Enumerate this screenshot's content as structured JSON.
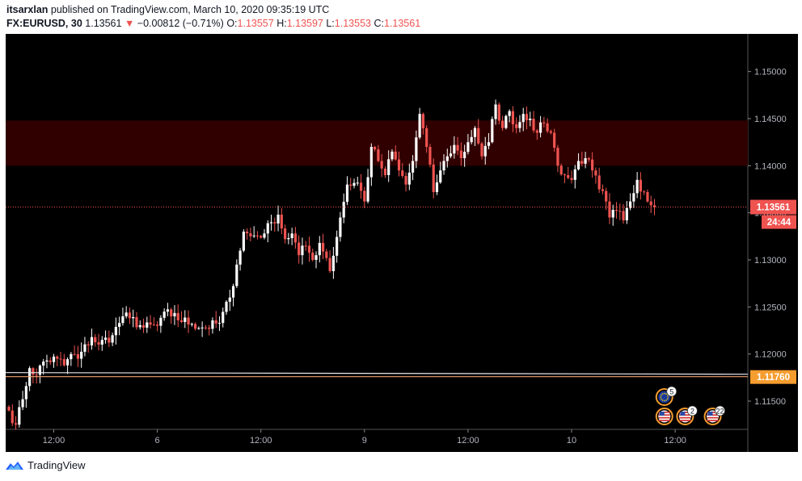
{
  "header": {
    "author": "itsarxlan",
    "published": "published on TradingView.com, March 10, 2020 09:35:19 UTC",
    "symbol": "FX:EURUSD, 30",
    "last": "1.13561",
    "change": "−0.00812 (−0.71%)",
    "o_label": "O:",
    "o": "1.13557",
    "h_label": "H:",
    "h": "1.13597",
    "l_label": "L:",
    "l": "1.13553",
    "c_label": "C:",
    "c": "1.13561"
  },
  "footer": {
    "brand": "TradingView"
  },
  "colors": {
    "bull": "#ffffff",
    "bear": "#ef5350",
    "background": "#000000",
    "zone": "#300000"
  },
  "chart_data": {
    "type": "candlestick",
    "y_ticks": [
      "1.11500",
      "1.12000",
      "1.12500",
      "1.13000",
      "1.13500",
      "1.14000",
      "1.14500",
      "1.15000"
    ],
    "ylim": [
      1.112,
      1.154
    ],
    "x_ticks": [
      {
        "label": "12:00",
        "bar": 13
      },
      {
        "label": "6",
        "bar": 43
      },
      {
        "label": "12:00",
        "bar": 73
      },
      {
        "label": "9",
        "bar": 103
      },
      {
        "label": "12:00",
        "bar": 133
      },
      {
        "label": "10",
        "bar": 163
      },
      {
        "label": "12:00",
        "bar": 193
      }
    ],
    "bar_count": 210,
    "resistance_zone": [
      1.14,
      1.1448
    ],
    "current_price": {
      "value": 1.13561,
      "label": "1.13561",
      "countdown": "24:44"
    },
    "level": {
      "value": 1.1176,
      "label": "1.11760"
    },
    "events": [
      {
        "flag": "eu",
        "count": "5",
        "bar": 188
      },
      {
        "flag": "us",
        "count": "",
        "bar": 188
      },
      {
        "flag": "us",
        "count": "2",
        "bar": 194
      },
      {
        "flag": "us",
        "count": "22",
        "bar": 202
      }
    ],
    "waypoints": [
      [
        0,
        1.114
      ],
      [
        2,
        1.1125
      ],
      [
        4,
        1.1152
      ],
      [
        6,
        1.1185
      ],
      [
        8,
        1.1178
      ],
      [
        10,
        1.1192
      ],
      [
        14,
        1.1195
      ],
      [
        16,
        1.1188
      ],
      [
        18,
        1.12
      ],
      [
        20,
        1.1195
      ],
      [
        24,
        1.1218
      ],
      [
        26,
        1.121
      ],
      [
        30,
        1.122
      ],
      [
        33,
        1.124
      ],
      [
        35,
        1.1238
      ],
      [
        39,
        1.1228
      ],
      [
        43,
        1.123
      ],
      [
        45,
        1.1245
      ],
      [
        47,
        1.124
      ],
      [
        53,
        1.1232
      ],
      [
        57,
        1.1228
      ],
      [
        61,
        1.1233
      ],
      [
        64,
        1.126
      ],
      [
        66,
        1.1295
      ],
      [
        68,
        1.133
      ],
      [
        70,
        1.1325
      ],
      [
        74,
        1.1328
      ],
      [
        76,
        1.134
      ],
      [
        78,
        1.1348
      ],
      [
        80,
        1.1322
      ],
      [
        82,
        1.1328
      ],
      [
        84,
        1.1305
      ],
      [
        86,
        1.1315
      ],
      [
        88,
        1.13
      ],
      [
        90,
        1.1318
      ],
      [
        92,
        1.1302
      ],
      [
        93,
        1.1288
      ],
      [
        96,
        1.1345
      ],
      [
        98,
        1.138
      ],
      [
        101,
        1.1382
      ],
      [
        103,
        1.1362
      ],
      [
        105,
        1.142
      ],
      [
        107,
        1.1405
      ],
      [
        109,
        1.139
      ],
      [
        111,
        1.1415
      ],
      [
        113,
        1.1395
      ],
      [
        115,
        1.138
      ],
      [
        117,
        1.1405
      ],
      [
        119,
        1.1455
      ],
      [
        121,
        1.142
      ],
      [
        123,
        1.1372
      ],
      [
        125,
        1.1395
      ],
      [
        127,
        1.141
      ],
      [
        129,
        1.1422
      ],
      [
        131,
        1.1408
      ],
      [
        133,
        1.1425
      ],
      [
        135,
        1.144
      ],
      [
        137,
        1.141
      ],
      [
        139,
        1.1425
      ],
      [
        141,
        1.1465
      ],
      [
        143,
        1.144
      ],
      [
        145,
        1.1458
      ],
      [
        147,
        1.144
      ],
      [
        149,
        1.1455
      ],
      [
        151,
        1.145
      ],
      [
        153,
        1.1435
      ],
      [
        155,
        1.1445
      ],
      [
        157,
        1.1435
      ],
      [
        159,
        1.14
      ],
      [
        161,
        1.139
      ],
      [
        163,
        1.1385
      ],
      [
        165,
        1.1405
      ],
      [
        167,
        1.1408
      ],
      [
        169,
        1.1395
      ],
      [
        171,
        1.1375
      ],
      [
        173,
        1.1362
      ],
      [
        174,
        1.1345
      ],
      [
        176,
        1.1352
      ],
      [
        178,
        1.1342
      ],
      [
        180,
        1.1362
      ],
      [
        182,
        1.1385
      ],
      [
        184,
        1.1372
      ],
      [
        186,
        1.1358
      ],
      [
        187,
        1.13561
      ]
    ]
  }
}
